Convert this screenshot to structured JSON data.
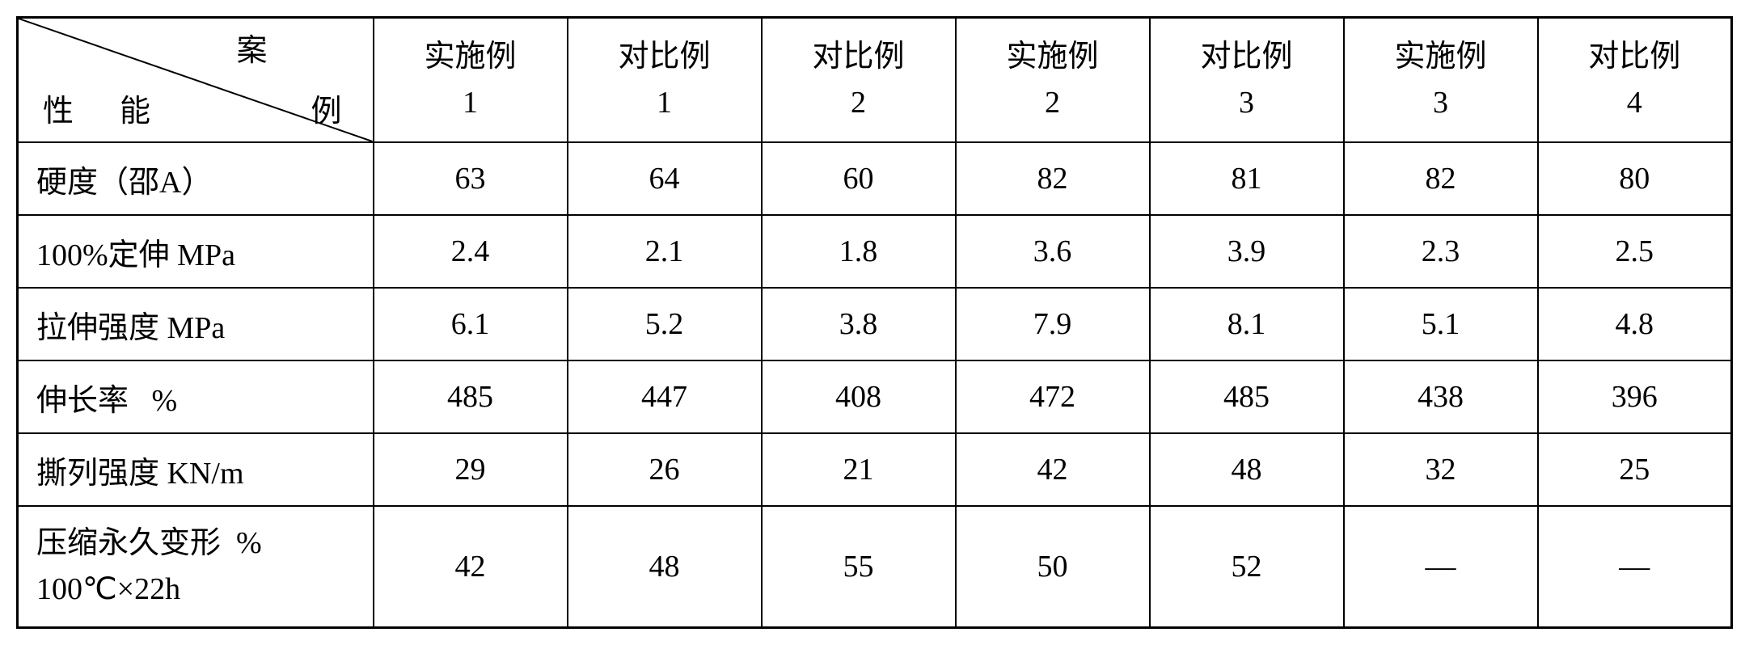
{
  "corner": {
    "top": "案",
    "mid": "例",
    "bot_left": "性",
    "bot_right": "能"
  },
  "columns": [
    {
      "l1": "实施例",
      "l2": "1"
    },
    {
      "l1": "对比例",
      "l2": "1"
    },
    {
      "l1": "对比例",
      "l2": "2"
    },
    {
      "l1": "实施例",
      "l2": "2"
    },
    {
      "l1": "对比例",
      "l2": "3"
    },
    {
      "l1": "实施例",
      "l2": "3"
    },
    {
      "l1": "对比例",
      "l2": "4"
    }
  ],
  "rows": [
    {
      "label": "硬度（邵A）",
      "tall": false,
      "cells": [
        "63",
        "64",
        "60",
        "82",
        "81",
        "82",
        "80"
      ]
    },
    {
      "label": "100%定伸 MPa",
      "tall": false,
      "cells": [
        "2.4",
        "2.1",
        "1.8",
        "3.6",
        "3.9",
        "2.3",
        "2.5"
      ]
    },
    {
      "label": "拉伸强度 MPa",
      "tall": false,
      "cells": [
        "6.1",
        "5.2",
        "3.8",
        "7.9",
        "8.1",
        "5.1",
        "4.8"
      ]
    },
    {
      "label": "伸长率   %",
      "tall": false,
      "cells": [
        "485",
        "447",
        "408",
        "472",
        "485",
        "438",
        "396"
      ]
    },
    {
      "label": "撕列强度 KN/m",
      "tall": false,
      "cells": [
        "29",
        "26",
        "21",
        "42",
        "48",
        "32",
        "25"
      ]
    },
    {
      "label": "压缩永久变形  %\n100℃×22h",
      "tall": true,
      "cells": [
        "42",
        "48",
        "55",
        "50",
        "52",
        "—",
        "—"
      ]
    }
  ],
  "style": {
    "col0_width": 440,
    "data_col_width": 240,
    "border_color": "#000000",
    "bg": "#ffffff",
    "font_size": 38
  }
}
